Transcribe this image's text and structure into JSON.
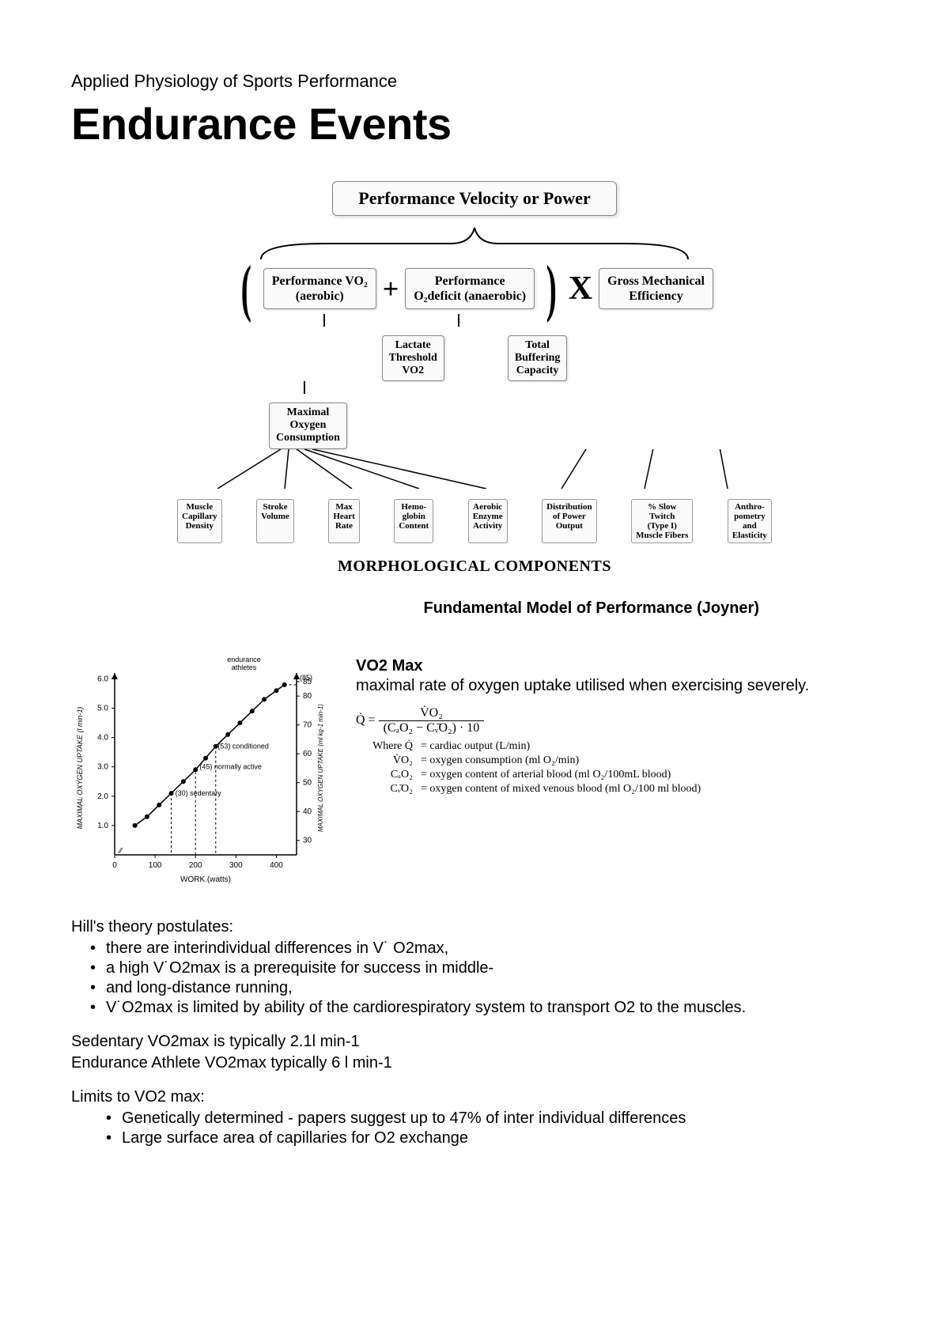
{
  "header": {
    "subtitle": "Applied Physiology of Sports Performance",
    "title": "Endurance Events"
  },
  "diagram": {
    "top": "Performance Velocity or Power",
    "row2": {
      "a": "Performance VO₂\n(aerobic)",
      "plus": "+",
      "b": "Performance\nO₂deficit (anaerobic)",
      "times": "X",
      "c": "Gross Mechanical\nEfficiency"
    },
    "row3": {
      "a": "Lactate\nThreshold\nVO2",
      "b": "Total\nBuffering\nCapacity"
    },
    "row4": "Maximal\nOxygen\nConsumption",
    "leaves": [
      "Muscle\nCapillary\nDensity",
      "Stroke\nVolume",
      "Max\nHeart\nRate",
      "Hemo-\nglobin\nContent",
      "Aerobic\nEnzyme\nActivity",
      "Distribution\nof Power\nOutput",
      "% Slow\nTwitch\n(Type I)\nMuscle Fibers",
      "Anthro-\npometry\nand\nElasticity"
    ],
    "morph": "MORPHOLOGICAL COMPONENTS",
    "caption": "Fundamental Model of Performance (Joyner)"
  },
  "chart": {
    "title_top": "endurance\nathletes",
    "y_left_label": "MAXIMAL OXYGEN UPTAKE  (l min-1)",
    "y_right_label": "MAXIMAL OXYGEN UPTAKE (ml kg-1 min-1)",
    "x_label": "WORK   (watts)",
    "y_left_ticks": [
      1.0,
      2.0,
      3.0,
      4.0,
      5.0,
      6.0
    ],
    "y_right_ticks": [
      30,
      40,
      50,
      60,
      70,
      80,
      85
    ],
    "x_ticks": [
      0,
      100,
      200,
      300,
      400
    ],
    "annotations": {
      "sedentary": "(30)  sedentary",
      "active": "(45) normally active",
      "conditioned": "(53) conditioned",
      "top": "(85)"
    },
    "points": [
      {
        "x": 50,
        "y": 1.0
      },
      {
        "x": 80,
        "y": 1.3
      },
      {
        "x": 110,
        "y": 1.7
      },
      {
        "x": 140,
        "y": 2.1
      },
      {
        "x": 170,
        "y": 2.5
      },
      {
        "x": 200,
        "y": 2.9
      },
      {
        "x": 225,
        "y": 3.3
      },
      {
        "x": 250,
        "y": 3.7
      },
      {
        "x": 280,
        "y": 4.1
      },
      {
        "x": 310,
        "y": 4.5
      },
      {
        "x": 340,
        "y": 4.9
      },
      {
        "x": 370,
        "y": 5.3
      },
      {
        "x": 400,
        "y": 5.6
      },
      {
        "x": 420,
        "y": 5.8
      }
    ],
    "xlim": [
      0,
      450
    ],
    "ylim": [
      0,
      6.2
    ],
    "colors": {
      "bg": "#ffffff",
      "line": "#000000",
      "point": "#000000"
    }
  },
  "vo2": {
    "h": "VO2 Max",
    "p": "maximal rate of oxygen uptake utilised when exercising severely.",
    "eq_lhs": "Q̇ =",
    "eq_num": "V̇O₂",
    "eq_den": "(CₐO₂ − Cᵥ̄O₂) · 10",
    "where": "Where Q̇",
    "defs": [
      {
        "sym": "Q̇",
        "txt": "= cardiac output (L/min)"
      },
      {
        "sym": "V̇O₂",
        "txt": "= oxygen consumption (ml O₂/min)"
      },
      {
        "sym": "CₐO₂",
        "txt": "= oxygen content of arterial blood (ml O₂/100mL blood)"
      },
      {
        "sym": "Cᵥ̄O₂",
        "txt": "= oxygen content of mixed venous blood (ml O₂/100 ml blood)"
      }
    ]
  },
  "body": {
    "hill_intro": "Hill's theory postulates:",
    "hill": [
      "there are interindividual differences in V˙ O2max,",
      "a high V˙O2max is a prerequisite for success in middle-",
      "and long-distance running,",
      "V˙O2max is limited by ability of the cardiorespiratory system to transport O2 to the muscles."
    ],
    "sed": "Sedentary VO2max is typically 2.1l min-1",
    "end": "Endurance Athlete VO2max typically 6 l min-1",
    "limits_intro": "Limits to VO2 max:",
    "limits": [
      "Genetically determined - papers suggest up to 47% of inter individual differences",
      "Large surface area of capillaries for O2 exchange"
    ]
  }
}
